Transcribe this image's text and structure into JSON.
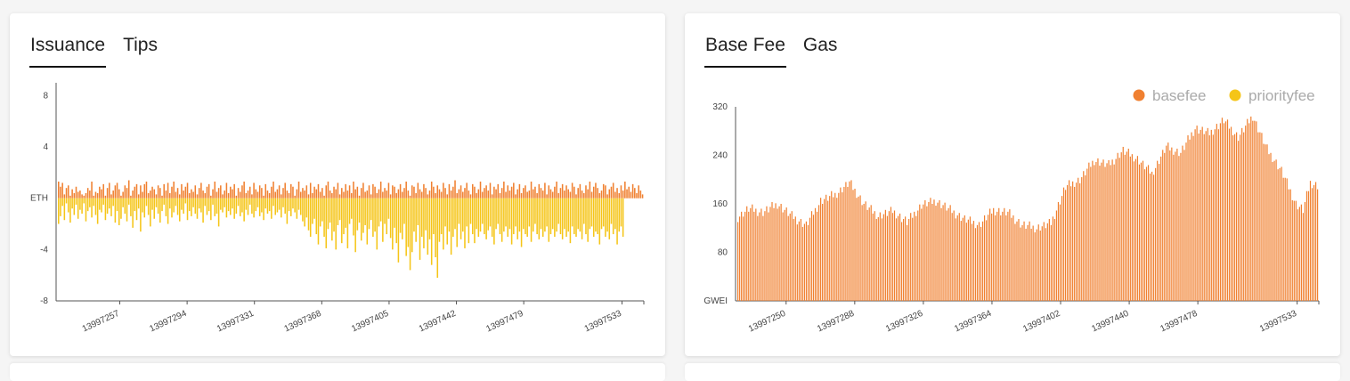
{
  "colors": {
    "orange": "#f08030",
    "yellow": "#f5c518"
  },
  "left_panel": {
    "tabs": [
      {
        "label": "Issuance",
        "active": true
      },
      {
        "label": "Tips",
        "active": false
      }
    ]
  },
  "right_panel": {
    "tabs": [
      {
        "label": "Base Fee",
        "active": true
      },
      {
        "label": "Gas",
        "active": false
      }
    ]
  },
  "chart_data": [
    {
      "type": "bar",
      "y_tick_labels": [
        "8",
        "4",
        "ETH",
        "-4",
        "-8"
      ],
      "y_tick_values": [
        8,
        4,
        0,
        -4,
        -8
      ],
      "ylim": [
        -8,
        9
      ],
      "xlim": [
        13997222,
        13997545
      ],
      "x_tick_values": [
        13997257,
        13997294,
        13997331,
        13997368,
        13997405,
        13997442,
        13997479,
        13997533
      ],
      "x_tick_labels": [
        "13997257",
        "13997294",
        "13997331",
        "13997368",
        "13997405",
        "13997442",
        "13997479",
        "13997533"
      ],
      "series": [
        {
          "color": "#f08030",
          "values": [
            1.3,
            0.9,
            1.2,
            0.3,
            0.8,
            1.0,
            0.2,
            0.7,
            0.4,
            0.9,
            0.5,
            0.6,
            0.3,
            0.2,
            0.4,
            0.8,
            0.6,
            1.3,
            0.2,
            0.5,
            0.4,
            0.9,
            0.7,
            1.1,
            0.2,
            0.8,
            1.2,
            0.3,
            0.6,
            1.0,
            1.2,
            0.7,
            0.2,
            0.5,
            1.0,
            0.8,
            1.4,
            0.2,
            0.6,
            0.9,
            1.1,
            0.3,
            1.0,
            0.5,
            1.1,
            1.3,
            0.4,
            0.6,
            0.9,
            0.7,
            0.3,
            1.0,
            0.8,
            0.2,
            1.1,
            0.6,
            1.2,
            0.4,
            0.9,
            1.3,
            0.5,
            0.8,
            0.3,
            1.1,
            0.6,
            0.9,
            1.2,
            0.4,
            0.7,
            0.5,
            1.0,
            0.3,
            0.8,
            1.2,
            0.6,
            0.4,
            0.9,
            1.1,
            0.2,
            0.7,
            1.3,
            0.5,
            0.8,
            1.0,
            0.3,
            0.6,
            1.2,
            0.4,
            0.9,
            0.7,
            1.1,
            0.2,
            0.8,
            0.5,
            1.0,
            1.3,
            0.4,
            0.6,
            0.9,
            0.3,
            1.2,
            0.7,
            0.5,
            1.0,
            0.8,
            0.2,
            1.1,
            0.6,
            0.4,
            0.9,
            1.3,
            0.5,
            0.7,
            1.0,
            0.3,
            0.8,
            1.2,
            0.6,
            0.4,
            1.1,
            0.9,
            0.2,
            0.7,
            1.3,
            0.5,
            0.8,
            0.6,
            1.0,
            0.3,
            1.2,
            0.4,
            0.9,
            0.7,
            1.1,
            0.5,
            0.8,
            0.2,
            1.0,
            1.3,
            0.6,
            0.4,
            0.9,
            0.7,
            1.2,
            0.3,
            0.8,
            0.5,
            1.1,
            0.6,
            1.0,
            0.4,
            1.3,
            0.7,
            0.9,
            0.2,
            0.8,
            1.2,
            0.5,
            0.6,
            1.0,
            0.3,
            1.1,
            0.9,
            0.4,
            0.7,
            1.3,
            0.5,
            0.8,
            0.6,
            1.2,
            0.3,
            1.0,
            0.9,
            0.4,
            0.7,
            1.1,
            0.5,
            0.8,
            1.3,
            0.6,
            0.2,
            1.0,
            0.9,
            0.4,
            1.2,
            0.7,
            0.5,
            1.1,
            0.8,
            0.3,
            0.6,
            1.3,
            0.9,
            0.4,
            1.0,
            0.7,
            0.5,
            1.2,
            0.8,
            0.3,
            1.1,
            0.6,
            0.9,
            1.4,
            0.4,
            0.7,
            1.0,
            0.5,
            0.8,
            1.2,
            0.6,
            0.3,
            1.1,
            0.9,
            0.4,
            0.7,
            1.3,
            0.5,
            0.8,
            1.0,
            0.6,
            1.2,
            0.3,
            0.9,
            0.7,
            1.1,
            0.4,
            0.8,
            1.3,
            0.5,
            1.0,
            0.6,
            0.9,
            1.2,
            0.3,
            0.7,
            1.1,
            0.4,
            0.8,
            1.0,
            0.5,
            0.6,
            1.3,
            0.7,
            0.9,
            0.4,
            1.1,
            0.8,
            0.6,
            1.2,
            0.3,
            1.0,
            0.7,
            0.5,
            0.9,
            1.3,
            0.4,
            0.8,
            1.1,
            0.6,
            1.0,
            0.7,
            0.5,
            1.2,
            0.9,
            0.3,
            0.8,
            1.1,
            0.6,
            0.4,
            1.0,
            0.7,
            1.3,
            0.5,
            0.9,
            1.2,
            0.8,
            0.4,
            0.6,
            1.1,
            1.0,
            0.3,
            0.7,
            0.9,
            1.2,
            0.5,
            0.8,
            0.4,
            1.0,
            0.6,
            1.3,
            0.7,
            0.9,
            0.5,
            1.1,
            0.8,
            0.4,
            1.0,
            0.6,
            0.3
          ]
        },
        {
          "color": "#f5c518",
          "values": [
            -2.0,
            -1.4,
            -0.6,
            -1.7,
            -0.4,
            -1.1,
            -1.9,
            -0.8,
            -1.3,
            -0.5,
            -1.6,
            -0.9,
            -1.2,
            -0.4,
            -1.8,
            -1.0,
            -0.7,
            -1.5,
            -0.6,
            -1.3,
            -2.0,
            -0.9,
            -1.1,
            -0.5,
            -1.7,
            -1.2,
            -0.8,
            -1.4,
            -0.6,
            -1.9,
            -1.0,
            -2.1,
            -1.6,
            -0.7,
            -1.2,
            -1.8,
            -0.5,
            -1.4,
            -2.3,
            -1.0,
            -1.7,
            -0.8,
            -2.6,
            -1.1,
            -1.5,
            -0.6,
            -1.3,
            -2.2,
            -0.9,
            -1.6,
            -0.7,
            -1.2,
            -1.9,
            -1.0,
            -0.5,
            -1.4,
            -2.0,
            -0.8,
            -1.5,
            -1.1,
            -0.6,
            -1.3,
            -1.8,
            -0.9,
            -1.2,
            -0.4,
            -1.7,
            -1.0,
            -1.4,
            -0.7,
            -1.2,
            -1.6,
            -0.8,
            -1.1,
            -1.9,
            -0.6,
            -1.3,
            -1.0,
            -1.7,
            -0.5,
            -1.4,
            -1.2,
            -2.2,
            -0.9,
            -1.1,
            -0.7,
            -1.5,
            -1.0,
            -1.3,
            -0.8,
            -1.6,
            -1.2,
            -0.6,
            -1.4,
            -1.1,
            -1.8,
            -0.9,
            -1.3,
            -0.5,
            -1.2,
            -1.5,
            -1.0,
            -0.7,
            -1.4,
            -1.1,
            -1.7,
            -0.8,
            -1.2,
            -1.0,
            -1.6,
            -0.6,
            -1.3,
            -1.1,
            -0.9,
            -1.5,
            -0.7,
            -1.2,
            -2.0,
            -1.0,
            -1.4,
            -0.8,
            -1.1,
            -1.6,
            -0.9,
            -1.3,
            -1.8,
            -2.2,
            -1.5,
            -2.5,
            -3.0,
            -2.0,
            -1.6,
            -2.8,
            -3.6,
            -2.2,
            -1.8,
            -3.0,
            -3.9,
            -2.4,
            -1.9,
            -3.3,
            -2.6,
            -4.0,
            -2.1,
            -1.7,
            -3.5,
            -2.8,
            -2.3,
            -3.9,
            -2.0,
            -1.6,
            -2.9,
            -4.2,
            -2.5,
            -1.9,
            -3.3,
            -2.7,
            -2.1,
            -3.6,
            -2.4,
            -1.7,
            -3.0,
            -2.6,
            -4.0,
            -2.2,
            -1.8,
            -3.4,
            -2.0,
            -2.8,
            -1.6,
            -3.1,
            -4.0,
            -2.3,
            -3.5,
            -5.0,
            -2.7,
            -3.2,
            -2.0,
            -4.5,
            -3.8,
            -5.6,
            -4.2,
            -2.6,
            -3.4,
            -2.1,
            -4.8,
            -3.0,
            -3.9,
            -2.5,
            -4.4,
            -3.2,
            -5.2,
            -2.8,
            -4.6,
            -6.2,
            -3.4,
            -2.8,
            -4.0,
            -2.2,
            -3.6,
            -2.6,
            -4.4,
            -3.0,
            -2.4,
            -3.8,
            -2.0,
            -3.2,
            -2.6,
            -3.9,
            -2.2,
            -3.5,
            -2.0,
            -2.8,
            -3.5,
            -2.4,
            -3.0,
            -2.6,
            -2.0,
            -2.8,
            -3.2,
            -2.5,
            -2.2,
            -3.0,
            -3.6,
            -2.4,
            -2.0,
            -2.8,
            -3.4,
            -2.6,
            -2.2,
            -3.0,
            -2.4,
            -3.6,
            -2.8,
            -2.2,
            -3.2,
            -2.6,
            -3.8,
            -2.4,
            -2.8,
            -3.0,
            -2.2,
            -3.4,
            -2.6,
            -2.0,
            -2.8,
            -3.2,
            -2.4,
            -3.0,
            -2.6,
            -2.2,
            -3.4,
            -2.8,
            -2.4,
            -3.0,
            -2.6,
            -2.0,
            -2.8,
            -3.2,
            -2.4,
            -3.0,
            -2.6,
            -3.5,
            -2.2,
            -2.8,
            -3.0,
            -2.4,
            -2.6,
            -3.2,
            -2.0,
            -2.8,
            -3.4,
            -2.4,
            -2.2,
            -3.0,
            -2.6,
            -2.8,
            -3.6,
            -2.4,
            -2.2,
            -3.0,
            -2.6,
            -3.2,
            -2.0,
            -2.8,
            -2.4,
            -3.6,
            -2.6,
            -2.2,
            -3.0
          ]
        }
      ]
    },
    {
      "type": "bar",
      "ylabel": "GWEI",
      "y_tick_labels": [
        "320",
        "240",
        "160",
        "80",
        "GWEI"
      ],
      "y_tick_values": [
        320,
        240,
        160,
        80,
        0
      ],
      "ylim": [
        0,
        320
      ],
      "xlim": [
        13997222,
        13997545
      ],
      "x_tick_values": [
        13997250,
        13997288,
        13997326,
        13997364,
        13997402,
        13997440,
        13997478,
        13997533
      ],
      "x_tick_labels": [
        "13997250",
        "13997288",
        "13997326",
        "13997364",
        "13997402",
        "13997440",
        "13997478",
        "13997533"
      ],
      "legend": {
        "placement": "top-right"
      },
      "series": [
        {
          "name": "basefee",
          "color": "#f08030",
          "keyframes": [
            [
              0,
              138
            ],
            [
              6,
              152
            ],
            [
              14,
              146
            ],
            [
              22,
              160
            ],
            [
              30,
              140
            ],
            [
              38,
              125
            ],
            [
              46,
              165
            ],
            [
              54,
              175
            ],
            [
              62,
              195
            ],
            [
              70,
              160
            ],
            [
              78,
              140
            ],
            [
              86,
              148
            ],
            [
              94,
              130
            ],
            [
              102,
              158
            ],
            [
              110,
              165
            ],
            [
              118,
              150
            ],
            [
              126,
              135
            ],
            [
              134,
              125
            ],
            [
              142,
              150
            ],
            [
              150,
              145
            ],
            [
              158,
              125
            ],
            [
              166,
              120
            ],
            [
              174,
              128
            ],
            [
              182,
              188
            ],
            [
              190,
              200
            ],
            [
              198,
              232
            ],
            [
              206,
              224
            ],
            [
              214,
              248
            ],
            [
              222,
              234
            ],
            [
              230,
              210
            ],
            [
              238,
              254
            ],
            [
              246,
              244
            ],
            [
              254,
              285
            ],
            [
              262,
              276
            ],
            [
              270,
              298
            ],
            [
              278,
              270
            ],
            [
              286,
              305
            ],
            [
              294,
              250
            ],
            [
              302,
              215
            ],
            [
              310,
              160
            ],
            [
              314,
              150
            ],
            [
              318,
              195
            ],
            [
              322,
              190
            ]
          ],
          "values": []
        },
        {
          "name": "priorityfee",
          "color": "#f5c518",
          "values": []
        }
      ]
    }
  ]
}
